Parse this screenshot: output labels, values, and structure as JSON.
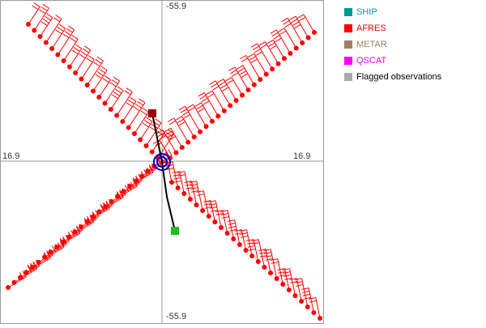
{
  "axis_labels": {
    "top": "-55.9",
    "bottom": "-55.9",
    "left": "16.9",
    "right": "16.9"
  },
  "legend": [
    {
      "label": "SHIP",
      "color": "#009999"
    },
    {
      "label": "AFRES",
      "color": "#ff0000"
    },
    {
      "label": "METAR",
      "color": "#a08060"
    },
    {
      "label": "QSCAT",
      "color": "#ff00ff"
    },
    {
      "label": "Flagged observations",
      "color": "#aaaaaa"
    }
  ]
}
